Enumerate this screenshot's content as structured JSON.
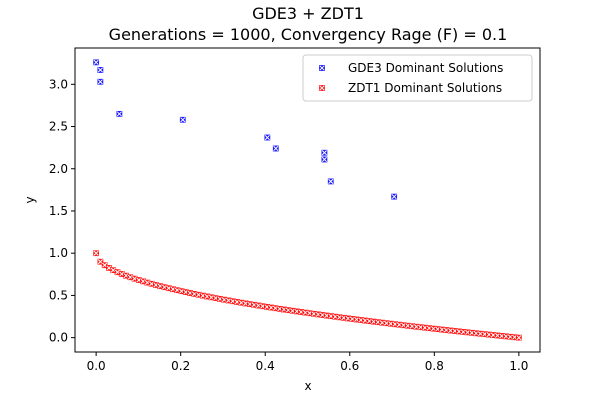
{
  "chart_data": {
    "type": "scatter",
    "title": "GDE3 + ZDT1",
    "subtitle": "Generations = 1000, Convergency Rage (F) = 0.1",
    "xlabel": "x",
    "ylabel": "y",
    "xlim": [
      -0.05,
      1.05
    ],
    "ylim": [
      -0.17,
      3.43
    ],
    "xticks": [
      "0.0",
      "0.2",
      "0.4",
      "0.6",
      "0.8",
      "1.0"
    ],
    "yticks": [
      "0.0",
      "0.5",
      "1.0",
      "1.5",
      "2.0",
      "2.5",
      "3.0"
    ],
    "grid": false,
    "legend": "top-right",
    "series": [
      {
        "name": "GDE3 Dominant Solutions",
        "color": "#0000ff",
        "marker": "x",
        "points": [
          [
            0.0,
            3.26
          ],
          [
            0.01,
            3.17
          ],
          [
            0.01,
            3.03
          ],
          [
            0.055,
            2.65
          ],
          [
            0.205,
            2.58
          ],
          [
            0.405,
            2.37
          ],
          [
            0.425,
            2.24
          ],
          [
            0.54,
            2.19
          ],
          [
            0.54,
            2.11
          ],
          [
            0.555,
            1.85
          ],
          [
            0.705,
            1.67
          ]
        ]
      },
      {
        "name": "ZDT1 Dominant Solutions",
        "color": "#ff0000",
        "marker": "x",
        "function": "1 - sqrt(x)",
        "x_start": 0.0,
        "x_end": 1.0,
        "n_points": 100
      }
    ]
  }
}
